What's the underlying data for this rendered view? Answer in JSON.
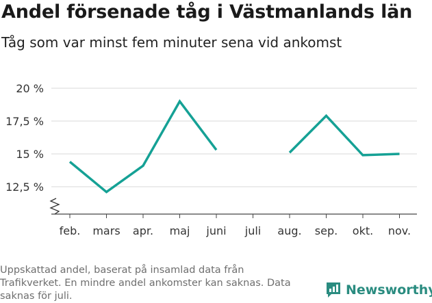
{
  "header": {
    "title": "Andel försenade tåg i Västmanlands län",
    "subtitle": "Tåg som var minst fem minuter sena vid ankomst"
  },
  "footer": {
    "source": "Uppskattad andel, baserat på insamlad data från Trafikverket. En mindre andel ankomster kan saknas. Data saknas för juli.",
    "brand": "Newsworthy"
  },
  "colors": {
    "line": "#15a195",
    "grid": "#d9d9d9",
    "brand": "#2a8c80"
  },
  "chart_data": {
    "type": "line",
    "title": "Andel försenade tåg i Västmanlands län",
    "subtitle": "Tåg som var minst fem minuter sena vid ankomst",
    "xlabel": "",
    "ylabel": "",
    "categories": [
      "feb.",
      "mars",
      "apr.",
      "maj",
      "juni",
      "juli",
      "aug.",
      "sep.",
      "okt.",
      "nov."
    ],
    "series": [
      {
        "values": [
          14.4,
          12.1,
          14.1,
          19.0,
          15.3,
          null,
          15.1,
          17.9,
          14.9,
          15.0
        ]
      }
    ],
    "yticks": [
      12.5,
      15,
      17.5,
      20
    ],
    "ytick_labels": [
      "12,5 %",
      "15 %",
      "17,5 %",
      "20 %"
    ],
    "ylim": [
      10.8,
      20
    ],
    "y_axis_break": true,
    "grid": true,
    "legend": "none"
  }
}
